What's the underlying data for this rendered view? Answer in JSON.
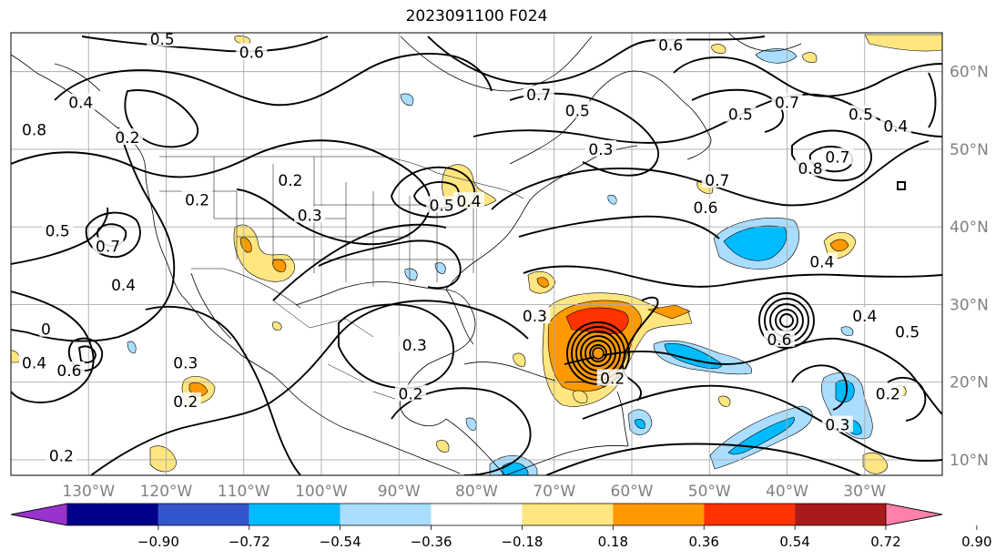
{
  "title": "2023091100 F024",
  "map": {
    "projection": "equirectangular",
    "lon_range": [
      -140,
      -20
    ],
    "lat_range": [
      8,
      65
    ],
    "gridlines": true,
    "grid_lon_step": 10,
    "grid_lat_step": 10,
    "lat_ticks": [
      "60°N",
      "50°N",
      "40°N",
      "30°N",
      "20°N",
      "10°N"
    ],
    "lat_tick_values": [
      60,
      50,
      40,
      30,
      20,
      10
    ],
    "lon_ticks": [
      "130°W",
      "120°W",
      "110°W",
      "100°W",
      "90°W",
      "80°W",
      "70°W",
      "60°W",
      "50°W",
      "40°W",
      "30°W"
    ],
    "lon_tick_values": [
      -130,
      -120,
      -110,
      -100,
      -90,
      -80,
      -70,
      -60,
      -50,
      -40,
      -30
    ]
  },
  "colorbar": {
    "labels": [
      "−0.90",
      "−0.72",
      "−0.54",
      "−0.36",
      "−0.18",
      "0.18",
      "0.36",
      "0.54",
      "0.72",
      "0.90"
    ],
    "levels": [
      -0.9,
      -0.72,
      -0.54,
      -0.36,
      -0.18,
      0.18,
      0.36,
      0.54,
      0.72,
      0.9
    ],
    "colors": [
      "#9933cc",
      "#00008b",
      "#3355cc",
      "#00bbff",
      "#aaddff",
      "#ffffff",
      "#ffe680",
      "#ff9900",
      "#ff3300",
      "#aa1a1a",
      "#ff80aa"
    ],
    "extend": "both"
  },
  "contour_labels": [
    {
      "text": "0.5",
      "lon": -120.5,
      "lat": 64.2
    },
    {
      "text": "0.6",
      "lon": -109,
      "lat": 62.5
    },
    {
      "text": "0.6",
      "lon": -55,
      "lat": 63.4
    },
    {
      "text": "0.4",
      "lon": -131,
      "lat": 56
    },
    {
      "text": "0.8",
      "lon": -137,
      "lat": 52.5
    },
    {
      "text": "0.2",
      "lon": -125,
      "lat": 51.5
    },
    {
      "text": "0.7",
      "lon": -72,
      "lat": 57
    },
    {
      "text": "0.5",
      "lon": -67,
      "lat": 55
    },
    {
      "text": "0.3",
      "lon": -64,
      "lat": 50
    },
    {
      "text": "0.5",
      "lon": -46,
      "lat": 54.5
    },
    {
      "text": "0.7",
      "lon": -40,
      "lat": 56
    },
    {
      "text": "0.5",
      "lon": -30.5,
      "lat": 54.5
    },
    {
      "text": "0.4",
      "lon": -26,
      "lat": 53
    },
    {
      "text": "0.7",
      "lon": -49,
      "lat": 46
    },
    {
      "text": "0.8",
      "lon": -37,
      "lat": 47.5
    },
    {
      "text": "0.7",
      "lon": -33.5,
      "lat": 49
    },
    {
      "text": "0.6",
      "lon": -50.5,
      "lat": 42.5
    },
    {
      "text": "0.2",
      "lon": -104,
      "lat": 46
    },
    {
      "text": "0.3",
      "lon": -101.5,
      "lat": 41.5
    },
    {
      "text": "0.2",
      "lon": -116,
      "lat": 43.5
    },
    {
      "text": "0.5",
      "lon": -84.5,
      "lat": 42.8
    },
    {
      "text": "0.4",
      "lon": -81,
      "lat": 43.3
    },
    {
      "text": "0.5",
      "lon": -134,
      "lat": 39.5
    },
    {
      "text": "0.7",
      "lon": -127.5,
      "lat": 37.5
    },
    {
      "text": "0.4",
      "lon": -125.5,
      "lat": 32.5
    },
    {
      "text": "0.4",
      "lon": -35.5,
      "lat": 35.5
    },
    {
      "text": "0.3",
      "lon": -72.5,
      "lat": 28.5
    },
    {
      "text": "0.3",
      "lon": -88,
      "lat": 24.8
    },
    {
      "text": "0",
      "lon": -135.5,
      "lat": 26.8
    },
    {
      "text": "0.4",
      "lon": -137,
      "lat": 22.5
    },
    {
      "text": "0.6",
      "lon": -132.5,
      "lat": 21.5
    },
    {
      "text": "0.3",
      "lon": -117.5,
      "lat": 22.5
    },
    {
      "text": "0.2",
      "lon": -117.5,
      "lat": 17.5
    },
    {
      "text": "0.2",
      "lon": -88.5,
      "lat": 18.5
    },
    {
      "text": "0.2",
      "lon": -133.5,
      "lat": 10.5
    },
    {
      "text": "0.4",
      "lon": -30,
      "lat": 28.5
    },
    {
      "text": "0.5",
      "lon": -24.5,
      "lat": 26.5
    },
    {
      "text": "0.6",
      "lon": -41,
      "lat": 25.5
    },
    {
      "text": "0.2",
      "lon": -27,
      "lat": 18.5
    },
    {
      "text": "0.3",
      "lon": -33.5,
      "lat": 14.5
    },
    {
      "text": "0.2",
      "lon": -62.5,
      "lat": 20.5
    }
  ]
}
